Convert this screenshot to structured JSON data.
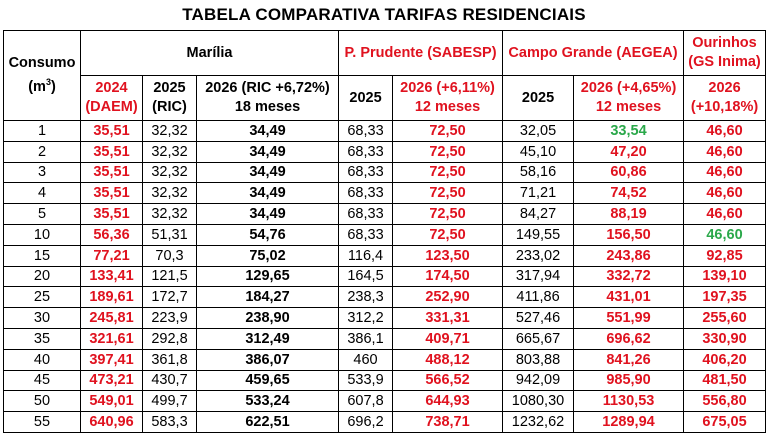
{
  "title": "TABELA COMPARATIVA TARIFAS RESIDENCIAIS",
  "header": {
    "consumo_line1": "Consumo",
    "consumo_line2": "(m",
    "consumo_sup": "3",
    "consumo_close": ")",
    "marilia": "Marília",
    "prudente": "P. Prudente (SABESP)",
    "campo_grande": "Campo Grande (AEGEA)",
    "ourinhos_line1": "Ourinhos",
    "ourinhos_line2": "(GS Inima)"
  },
  "subheader": {
    "m2024_line1": "2024",
    "m2024_line2": "(DAEM)",
    "m2025_line1": "2025",
    "m2025_line2": "(RIC)",
    "m2026_line1": "2026 (RIC +6,72%)",
    "m2026_line2": "18 meses",
    "p2025": "2025",
    "p2026_line1": "2026 (+6,11%)",
    "p2026_line2": "12 meses",
    "c2025": "2025",
    "c2026_line1": "2026 (+4,65%)",
    "c2026_line2": "12 meses",
    "o2026_line1": "2026",
    "o2026_line2": "(+10,18%)"
  },
  "colors": {
    "red": "#e0121f",
    "green": "#2aa84a"
  },
  "rows": [
    {
      "consumo": "1",
      "m2024": "35,51",
      "m2025": "32,32",
      "m2026": "34,49",
      "p2025": "68,33",
      "p2026": "72,50",
      "c2025": "32,05",
      "c2026": "33,54",
      "c2026_color": "green",
      "o2026": "46,60",
      "o2026_color": "red"
    },
    {
      "consumo": "2",
      "m2024": "35,51",
      "m2025": "32,32",
      "m2026": "34,49",
      "p2025": "68,33",
      "p2026": "72,50",
      "c2025": "45,10",
      "c2026": "47,20",
      "c2026_color": "red",
      "o2026": "46,60",
      "o2026_color": "red"
    },
    {
      "consumo": "3",
      "m2024": "35,51",
      "m2025": "32,32",
      "m2026": "34,49",
      "p2025": "68,33",
      "p2026": "72,50",
      "c2025": "58,16",
      "c2026": "60,86",
      "c2026_color": "red",
      "o2026": "46,60",
      "o2026_color": "red"
    },
    {
      "consumo": "4",
      "m2024": "35,51",
      "m2025": "32,32",
      "m2026": "34,49",
      "p2025": "68,33",
      "p2026": "72,50",
      "c2025": "71,21",
      "c2026": "74,52",
      "c2026_color": "red",
      "o2026": "46,60",
      "o2026_color": "red"
    },
    {
      "consumo": "5",
      "m2024": "35,51",
      "m2025": "32,32",
      "m2026": "34,49",
      "p2025": "68,33",
      "p2026": "72,50",
      "c2025": "84,27",
      "c2026": "88,19",
      "c2026_color": "red",
      "o2026": "46,60",
      "o2026_color": "red"
    },
    {
      "consumo": "10",
      "m2024": "56,36",
      "m2025": "51,31",
      "m2026": "54,76",
      "p2025": "68,33",
      "p2026": "72,50",
      "c2025": "149,55",
      "c2026": "156,50",
      "c2026_color": "red",
      "o2026": "46,60",
      "o2026_color": "green"
    },
    {
      "consumo": "15",
      "m2024": "77,21",
      "m2025": "70,3",
      "m2026": "75,02",
      "p2025": "116,4",
      "p2026": "123,50",
      "c2025": "233,02",
      "c2026": "243,86",
      "c2026_color": "red",
      "o2026": "92,85",
      "o2026_color": "red"
    },
    {
      "consumo": "20",
      "m2024": "133,41",
      "m2025": "121,5",
      "m2026": "129,65",
      "p2025": "164,5",
      "p2026": "174,50",
      "c2025": "317,94",
      "c2026": "332,72",
      "c2026_color": "red",
      "o2026": "139,10",
      "o2026_color": "red"
    },
    {
      "consumo": "25",
      "m2024": "189,61",
      "m2025": "172,7",
      "m2026": "184,27",
      "p2025": "238,3",
      "p2026": "252,90",
      "c2025": "411,86",
      "c2026": "431,01",
      "c2026_color": "red",
      "o2026": "197,35",
      "o2026_color": "red"
    },
    {
      "consumo": "30",
      "m2024": "245,81",
      "m2025": "223,9",
      "m2026": "238,90",
      "p2025": "312,2",
      "p2026": "331,31",
      "c2025": "527,46",
      "c2026": "551,99",
      "c2026_color": "red",
      "o2026": "255,60",
      "o2026_color": "red"
    },
    {
      "consumo": "35",
      "m2024": "321,61",
      "m2025": "292,8",
      "m2026": "312,49",
      "p2025": "386,1",
      "p2026": "409,71",
      "c2025": "665,67",
      "c2026": "696,62",
      "c2026_color": "red",
      "o2026": "330,90",
      "o2026_color": "red"
    },
    {
      "consumo": "40",
      "m2024": "397,41",
      "m2025": "361,8",
      "m2026": "386,07",
      "p2025": "460",
      "p2026": "488,12",
      "c2025": "803,88",
      "c2026": "841,26",
      "c2026_color": "red",
      "o2026": "406,20",
      "o2026_color": "red"
    },
    {
      "consumo": "45",
      "m2024": "473,21",
      "m2025": "430,7",
      "m2026": "459,65",
      "p2025": "533,9",
      "p2026": "566,52",
      "c2025": "942,09",
      "c2026": "985,90",
      "c2026_color": "red",
      "o2026": "481,50",
      "o2026_color": "red"
    },
    {
      "consumo": "50",
      "m2024": "549,01",
      "m2025": "499,7",
      "m2026": "533,24",
      "p2025": "607,8",
      "p2026": "644,93",
      "c2025": "1080,30",
      "c2026": "1130,53",
      "c2026_color": "red",
      "o2026": "556,80",
      "o2026_color": "red"
    },
    {
      "consumo": "55",
      "m2024": "640,96",
      "m2025": "583,3",
      "m2026": "622,51",
      "p2025": "696,2",
      "p2026": "738,71",
      "c2025": "1232,62",
      "c2026": "1289,94",
      "c2026_color": "red",
      "o2026": "675,05",
      "o2026_color": "red"
    }
  ]
}
